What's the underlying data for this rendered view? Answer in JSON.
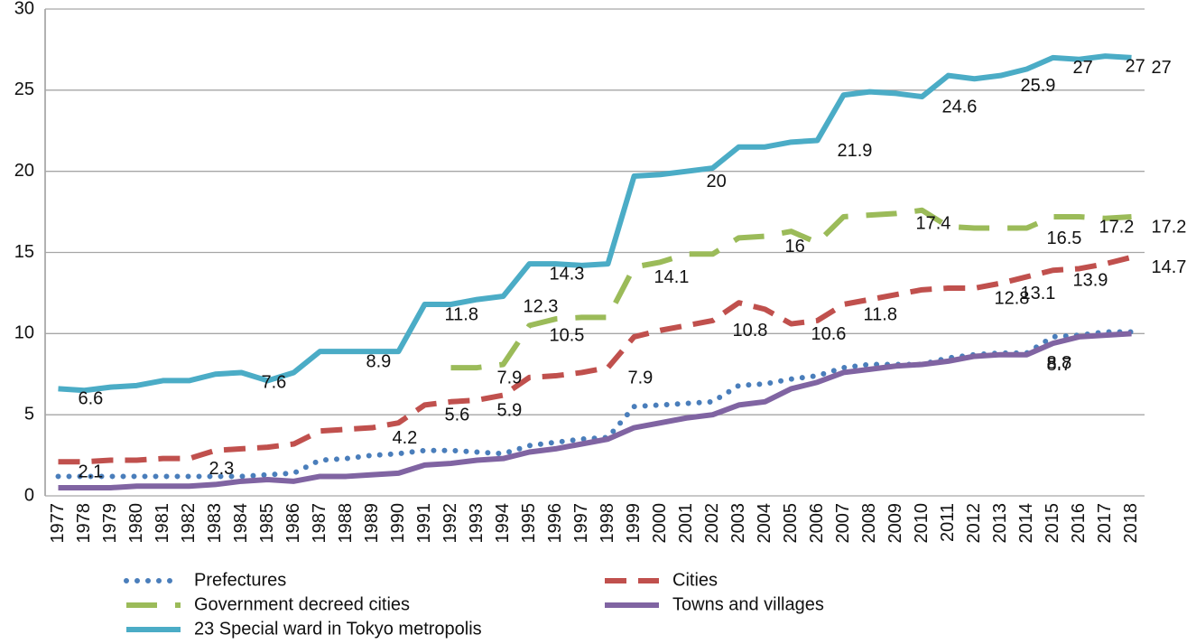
{
  "chart_data": {
    "type": "line",
    "categories": [
      "1977",
      "1978",
      "1979",
      "1980",
      "1981",
      "1982",
      "1983",
      "1984",
      "1985",
      "1986",
      "1987",
      "1988",
      "1989",
      "1990",
      "1991",
      "1992",
      "1993",
      "1994",
      "1995",
      "1996",
      "1997",
      "1998",
      "1999",
      "2000",
      "2001",
      "2002",
      "2003",
      "2004",
      "2005",
      "2006",
      "2007",
      "2008",
      "2009",
      "2010",
      "2011",
      "2012",
      "2013",
      "2014",
      "2015",
      "2016",
      "2017",
      "2018"
    ],
    "ylim": [
      0,
      30
    ],
    "yticks": [
      0,
      5,
      10,
      15,
      20,
      25,
      30
    ],
    "grid": true,
    "legend": "bottom",
    "series": [
      {
        "name": "Prefectures",
        "color": "#4a7ebb",
        "dash": "dotted",
        "values": [
          1.2,
          1.2,
          1.2,
          1.2,
          1.2,
          1.2,
          1.2,
          1.2,
          1.3,
          1.4,
          2.2,
          2.3,
          2.5,
          2.6,
          2.8,
          2.8,
          2.7,
          2.6,
          3.1,
          3.3,
          3.5,
          3.6,
          5.5,
          5.6,
          5.7,
          5.8,
          6.8,
          6.9,
          7.2,
          7.4,
          7.9,
          8.1,
          8.1,
          8.1,
          8.5,
          8.7,
          8.8,
          8.8,
          9.8,
          9.9,
          10.1,
          10.1
        ],
        "value_labels": [
          null,
          null,
          null,
          null,
          null,
          null,
          null,
          null,
          null,
          null,
          null,
          null,
          null,
          null,
          null,
          null,
          null,
          null,
          null,
          null,
          null,
          null,
          null,
          null,
          null,
          null,
          null,
          null,
          null,
          null,
          null,
          null,
          null,
          null,
          null,
          null,
          null,
          "8.8",
          null,
          null,
          null,
          null
        ]
      },
      {
        "name": "Cities",
        "color": "#c0504d",
        "dash": "dashed",
        "values": [
          2.1,
          2.1,
          2.2,
          2.2,
          2.3,
          2.3,
          2.8,
          2.9,
          3.0,
          3.2,
          4.0,
          4.1,
          4.2,
          4.5,
          5.6,
          5.8,
          5.9,
          6.2,
          7.3,
          7.4,
          7.6,
          7.9,
          9.8,
          10.2,
          10.5,
          10.8,
          11.9,
          11.5,
          10.6,
          10.8,
          11.8,
          12.1,
          12.4,
          12.7,
          12.8,
          12.8,
          13.1,
          13.5,
          13.9,
          14.0,
          14.3,
          14.7
        ],
        "value_labels": [
          "2.1",
          null,
          null,
          null,
          null,
          "2.3",
          null,
          null,
          null,
          null,
          null,
          null,
          "4.2",
          null,
          "5.6",
          null,
          "5.9",
          null,
          null,
          null,
          null,
          "7.9",
          null,
          null,
          null,
          "10.8",
          null,
          null,
          "10.6",
          null,
          "11.8",
          null,
          null,
          null,
          null,
          "12.8",
          "13.1",
          null,
          "13.9",
          null,
          null,
          "14.7"
        ]
      },
      {
        "name": "Government decreed cities",
        "color": "#9bbb59",
        "dash": "long-dashed",
        "values": [
          null,
          null,
          null,
          null,
          null,
          null,
          null,
          null,
          null,
          null,
          null,
          null,
          null,
          null,
          null,
          7.9,
          7.9,
          8.1,
          10.5,
          10.9,
          11.0,
          11.0,
          14.1,
          14.4,
          14.9,
          14.9,
          15.9,
          16,
          16.3,
          15.6,
          17.2,
          17.3,
          17.4,
          17.6,
          16.6,
          16.5,
          16.5,
          16.5,
          17.2,
          17.2,
          17.1,
          17.2
        ],
        "value_labels": [
          null,
          null,
          null,
          null,
          null,
          null,
          null,
          null,
          null,
          null,
          null,
          null,
          null,
          null,
          null,
          null,
          "7.9",
          null,
          "10.5",
          null,
          null,
          null,
          "14.1",
          null,
          null,
          null,
          null,
          "16",
          null,
          null,
          null,
          null,
          "17.4",
          null,
          null,
          null,
          null,
          "16.5",
          null,
          "17.2",
          null,
          "17.2"
        ]
      },
      {
        "name": "Towns and villages",
        "color": "#8064a2",
        "dash": "solid",
        "values": [
          0.5,
          0.5,
          0.5,
          0.6,
          0.6,
          0.6,
          0.7,
          0.9,
          1.0,
          0.9,
          1.2,
          1.2,
          1.3,
          1.4,
          1.9,
          2.0,
          2.2,
          2.3,
          2.7,
          2.9,
          3.2,
          3.5,
          4.2,
          4.5,
          4.8,
          5.0,
          5.6,
          5.8,
          6.6,
          7.0,
          7.6,
          7.8,
          8.0,
          8.1,
          8.3,
          8.6,
          8.7,
          8.7,
          9.4,
          9.8,
          9.9,
          10.0
        ],
        "value_labels": [
          null,
          null,
          null,
          null,
          null,
          null,
          null,
          null,
          null,
          null,
          null,
          null,
          null,
          null,
          null,
          null,
          null,
          null,
          null,
          null,
          null,
          null,
          null,
          null,
          null,
          null,
          null,
          null,
          null,
          null,
          null,
          null,
          null,
          null,
          null,
          null,
          null,
          "8.7",
          null,
          null,
          null,
          null
        ]
      },
      {
        "name": "23 Special ward in Tokyo metropolis",
        "color": "#4bacc6",
        "dash": "solid",
        "values": [
          6.6,
          6.5,
          6.7,
          6.8,
          7.1,
          7.1,
          7.5,
          7.6,
          7.1,
          7.6,
          8.9,
          8.9,
          8.9,
          8.9,
          11.8,
          11.8,
          12.1,
          12.3,
          14.3,
          14.3,
          14.2,
          14.3,
          19.7,
          19.8,
          20.0,
          20.2,
          21.5,
          21.5,
          21.8,
          21.9,
          24.7,
          24.9,
          24.8,
          24.6,
          25.9,
          25.7,
          25.9,
          26.3,
          27.0,
          26.9,
          27.1,
          27.0
        ],
        "value_labels": [
          "6.6",
          null,
          null,
          null,
          null,
          null,
          null,
          "7.6",
          null,
          null,
          null,
          "8.9",
          null,
          null,
          "11.8",
          null,
          null,
          "12.3",
          "14.3",
          null,
          null,
          null,
          null,
          null,
          "20",
          null,
          null,
          null,
          null,
          "21.9",
          null,
          null,
          null,
          "24.6",
          null,
          null,
          "25.9",
          null,
          "27",
          null,
          "27",
          "27"
        ]
      }
    ]
  }
}
